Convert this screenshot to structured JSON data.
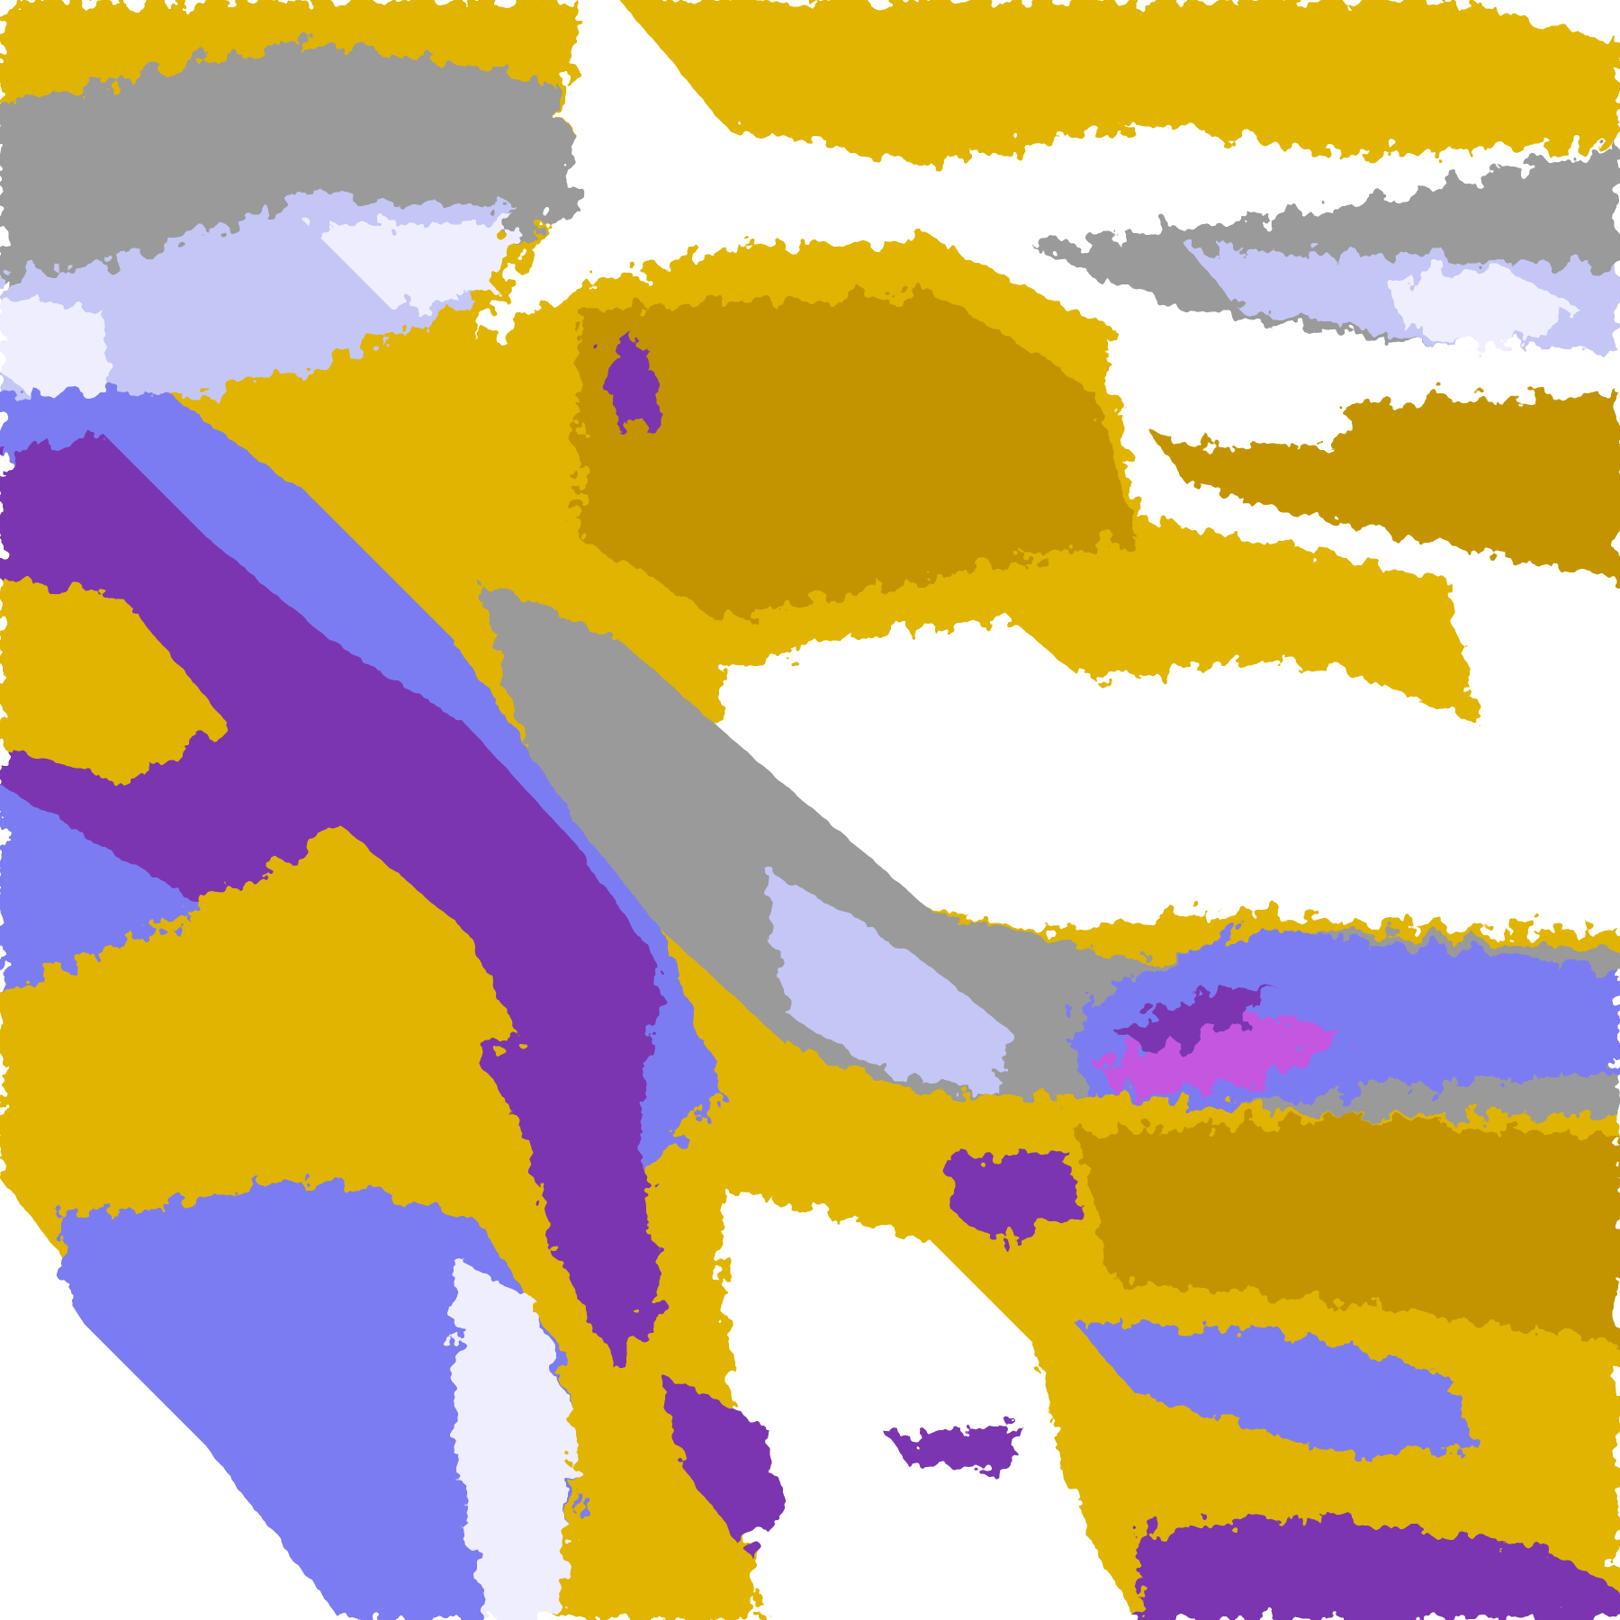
{
  "map": {
    "colors": {
      "background": "#ffffff",
      "gold": "#e0b400",
      "dark_gold": "#c39400",
      "purple": "#7b35b0",
      "magenta": "#c457e0",
      "periwinkle": "#7b7cf2",
      "lavender": "#c4c6f6",
      "pale_lavender": "#eeeeff",
      "gray": "#9a9a9a",
      "off_disk": "#ffffff"
    }
  }
}
